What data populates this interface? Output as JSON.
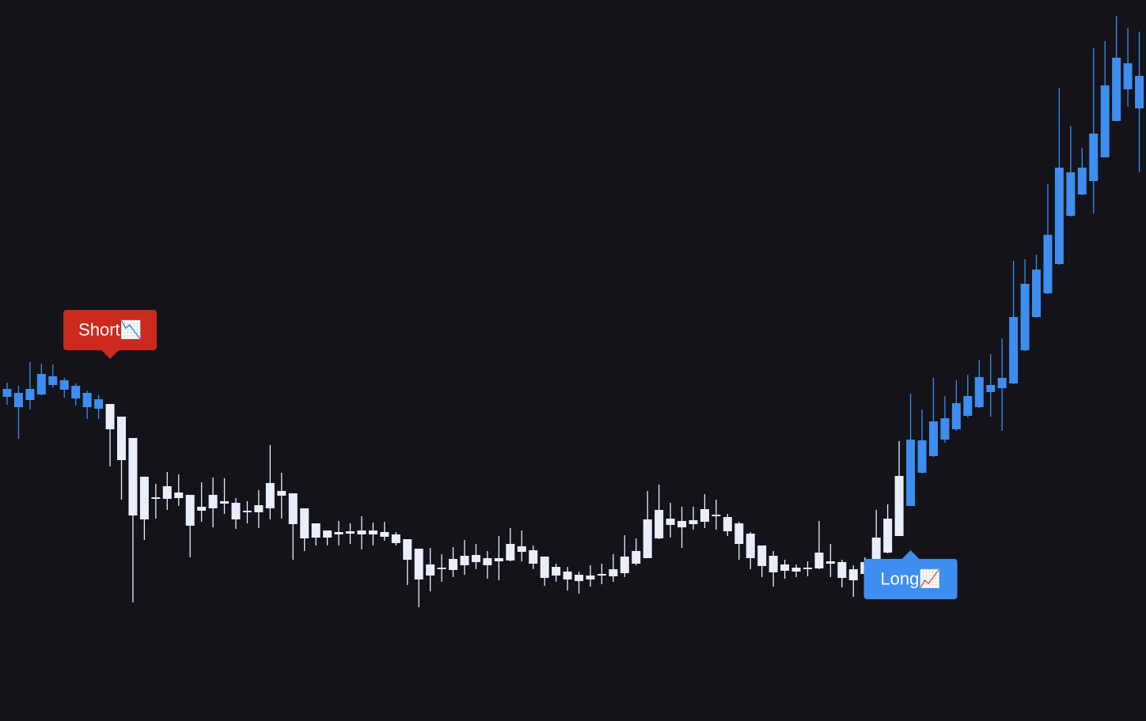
{
  "chart_data": {
    "type": "candlestick",
    "open": [
      420,
      415,
      420,
      439,
      436,
      431,
      424,
      415,
      407,
      401,
      385,
      358,
      309,
      283,
      297,
      289,
      286,
      271,
      286,
      278,
      276,
      266,
      273,
      301,
      291,
      288,
      269,
      250,
      241,
      239,
      240,
      241,
      241,
      239,
      236,
      230,
      218,
      198,
      194,
      205,
      209,
      210,
      206,
      206,
      224,
      221,
      216,
      208,
      195,
      189,
      185,
      184,
      186,
      192,
      208,
      215,
      255,
      267,
      256,
      253,
      254,
      268,
      261,
      258,
      250,
      237,
      222,
      209,
      198,
      194,
      194,
      213,
      202,
      201,
      192,
      201,
      204,
      213,
      234,
      272,
      314,
      335,
      356,
      369,
      386,
      397,
      416,
      421,
      427,
      469,
      511,
      541,
      578,
      639,
      666,
      683,
      713,
      759,
      799,
      775
    ],
    "high": [
      428,
      424,
      454,
      452,
      451,
      434,
      427,
      418,
      412,
      401,
      385,
      358,
      309,
      300,
      315,
      312,
      286,
      302,
      308,
      307,
      282,
      278,
      292,
      349,
      314,
      288,
      269,
      250,
      241,
      253,
      250,
      259,
      251,
      252,
      239,
      230,
      218,
      219,
      211,
      220,
      229,
      224,
      215,
      234,
      244,
      241,
      222,
      208,
      199,
      195,
      189,
      197,
      199,
      211,
      235,
      231,
      291,
      299,
      276,
      271,
      271,
      287,
      280,
      262,
      252,
      239,
      222,
      215,
      204,
      198,
      202,
      253,
      224,
      204,
      197,
      207,
      267,
      274,
      354,
      414,
      394,
      434,
      411,
      431,
      438,
      457,
      464,
      484,
      582,
      584,
      590,
      679,
      801,
      753,
      725,
      851,
      860,
      892,
      877,
      872
    ],
    "low": [
      400,
      357,
      394,
      412,
      422,
      409,
      399,
      382,
      382,
      322,
      280,
      150,
      229,
      256,
      267,
      272,
      207,
      252,
      245,
      262,
      243,
      250,
      244,
      255,
      256,
      204,
      215,
      222,
      222,
      222,
      224,
      217,
      222,
      228,
      222,
      172,
      144,
      164,
      176,
      182,
      185,
      192,
      180,
      178,
      202,
      202,
      192,
      171,
      176,
      165,
      161,
      170,
      173,
      176,
      182,
      197,
      206,
      230,
      232,
      219,
      242,
      244,
      242,
      234,
      204,
      192,
      182,
      170,
      180,
      182,
      183,
      192,
      182,
      169,
      157,
      182,
      202,
      212,
      234,
      272,
      313,
      334,
      352,
      367,
      384,
      396,
      385,
      367,
      426,
      468,
      510,
      540,
      577,
      638,
      665,
      642,
      713,
      758,
      777,
      694
    ],
    "close": [
      410,
      397,
      406,
      413,
      425,
      419,
      408,
      397,
      395,
      369,
      330,
      260,
      255,
      281,
      281,
      282,
      247,
      266,
      269,
      275,
      255,
      264,
      264,
      269,
      285,
      249,
      231,
      232,
      232,
      236,
      237,
      236,
      236,
      233,
      225,
      204,
      179,
      184,
      192,
      191,
      197,
      201,
      197,
      202,
      203,
      214,
      199,
      181,
      184,
      179,
      177,
      179,
      184,
      183,
      187,
      199,
      206,
      231,
      248,
      245,
      249,
      252,
      259,
      240,
      224,
      206,
      196,
      188,
      190,
      189,
      192,
      193,
      199,
      181,
      178,
      186,
      232,
      256,
      310,
      356,
      355,
      379,
      383,
      402,
      411,
      435,
      425,
      434,
      511,
      553,
      571,
      615,
      700,
      694,
      700,
      743,
      804,
      839,
      832,
      816
    ],
    "colors": [
      "#3d8ef0",
      "#3d8ef0",
      "#3d8ef0",
      "#3d8ef0",
      "#3d8ef0",
      "#3d8ef0",
      "#3d8ef0",
      "#3d8ef0",
      "#3d8ef0",
      "#e8eefc",
      "#e8eefc",
      "#e8eefc",
      "#e8eefc",
      "#e8eefc",
      "#e8eefc",
      "#e8eefc",
      "#e8eefc",
      "#e8eefc",
      "#e8eefc",
      "#e8eefc",
      "#e8eefc",
      "#e8eefc",
      "#e8eefc",
      "#e8eefc",
      "#e8eefc",
      "#e8eefc",
      "#e8eefc",
      "#e8eefc",
      "#e8eefc",
      "#e8eefc",
      "#e8eefc",
      "#e8eefc",
      "#e8eefc",
      "#e8eefc",
      "#e8eefc",
      "#e8eefc",
      "#e8eefc",
      "#e8eefc",
      "#e8eefc",
      "#e8eefc",
      "#e8eefc",
      "#e8eefc",
      "#e8eefc",
      "#e8eefc",
      "#e8eefc",
      "#e8eefc",
      "#e8eefc",
      "#e8eefc",
      "#e8eefc",
      "#e8eefc",
      "#e8eefc",
      "#e8eefc",
      "#e8eefc",
      "#e8eefc",
      "#e8eefc",
      "#e8eefc",
      "#e8eefc",
      "#e8eefc",
      "#e8eefc",
      "#e8eefc",
      "#e8eefc",
      "#e8eefc",
      "#e8eefc",
      "#e8eefc",
      "#e8eefc",
      "#e8eefc",
      "#e8eefc",
      "#e8eefc",
      "#e8eefc",
      "#e8eefc",
      "#e8eefc",
      "#e8eefc",
      "#e8eefc",
      "#e8eefc",
      "#e8eefc",
      "#e8eefc",
      "#e8eefc",
      "#e8eefc",
      "#e8eefc",
      "#3d8ef0",
      "#3d8ef0",
      "#3d8ef0",
      "#3d8ef0",
      "#3d8ef0",
      "#3d8ef0",
      "#3d8ef0",
      "#3d8ef0",
      "#3d8ef0",
      "#3d8ef0",
      "#3d8ef0",
      "#3d8ef0",
      "#3d8ef0",
      "#3d8ef0",
      "#3d8ef0",
      "#3d8ef0",
      "#3d8ef0",
      "#3d8ef0",
      "#3d8ef0",
      "#3d8ef0",
      "#3d8ef0"
    ],
    "ylim": [
      0,
      912
    ],
    "annotations": [
      {
        "text": "Short📉",
        "index": 9,
        "color": "#cc2a1f",
        "placement": "above"
      },
      {
        "text": "Long📈",
        "index": 79,
        "color": "#3d8ef0",
        "placement": "below"
      }
    ]
  }
}
